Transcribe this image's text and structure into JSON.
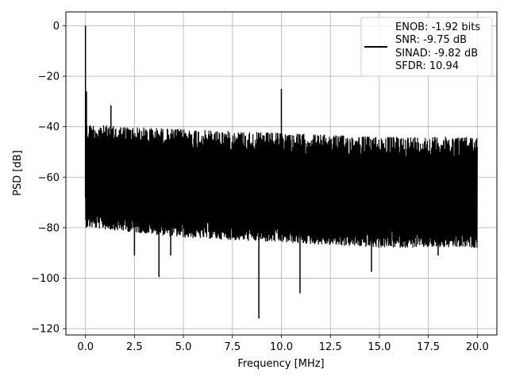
{
  "chart_data": {
    "type": "line",
    "title": "",
    "xlabel": "Frequency [MHz]",
    "ylabel": "PSD [dB]",
    "xlim": [
      -1.0,
      21.0
    ],
    "ylim": [
      -122.5,
      5.5
    ],
    "xticks": [
      0.0,
      2.5,
      5.0,
      7.5,
      10.0,
      12.5,
      15.0,
      17.5,
      20.0
    ],
    "xtick_labels": [
      "0.0",
      "2.5",
      "5.0",
      "7.5",
      "10.0",
      "12.5",
      "15.0",
      "17.5",
      "20.0"
    ],
    "yticks": [
      0,
      -20,
      -40,
      -60,
      -80,
      -100,
      -120
    ],
    "ytick_labels": [
      "0",
      "−20",
      "−40",
      "−60",
      "−80",
      "−100",
      "−120"
    ],
    "grid": true,
    "legend": {
      "position": "top-right",
      "lines": [
        "ENOB: -1.92 bits",
        "SNR: -9.75 dB",
        "SINAD: -9.82 dB",
        "SFDR: 10.94"
      ]
    },
    "series": [
      {
        "color": "#000000",
        "x_range": [
          0.0,
          20.0
        ],
        "noise_upper_envelope": {
          "x": [
            0.1,
            2.0,
            5.0,
            10.0,
            15.0,
            20.0
          ],
          "y": [
            -35,
            -36,
            -37,
            -38.5,
            -40,
            -40
          ]
        },
        "noise_lower_envelope": {
          "x": [
            0.1,
            5.0,
            10.0,
            15.0,
            20.0
          ],
          "y": [
            -78,
            -82,
            -84,
            -86,
            -86
          ]
        },
        "peaks": [
          {
            "x": 0.0,
            "y": 0
          },
          {
            "x": 0.05,
            "y": -26
          },
          {
            "x": 1.3,
            "y": -31.5
          },
          {
            "x": 10.0,
            "y": -25
          }
        ],
        "dips": [
          {
            "x": 3.75,
            "y": -99.5
          },
          {
            "x": 8.85,
            "y": -116
          },
          {
            "x": 10.95,
            "y": -106
          },
          {
            "x": 14.6,
            "y": -97.5
          },
          {
            "x": 2.5,
            "y": -91
          },
          {
            "x": 4.35,
            "y": -91
          },
          {
            "x": 18.0,
            "y": -91
          }
        ]
      }
    ]
  }
}
